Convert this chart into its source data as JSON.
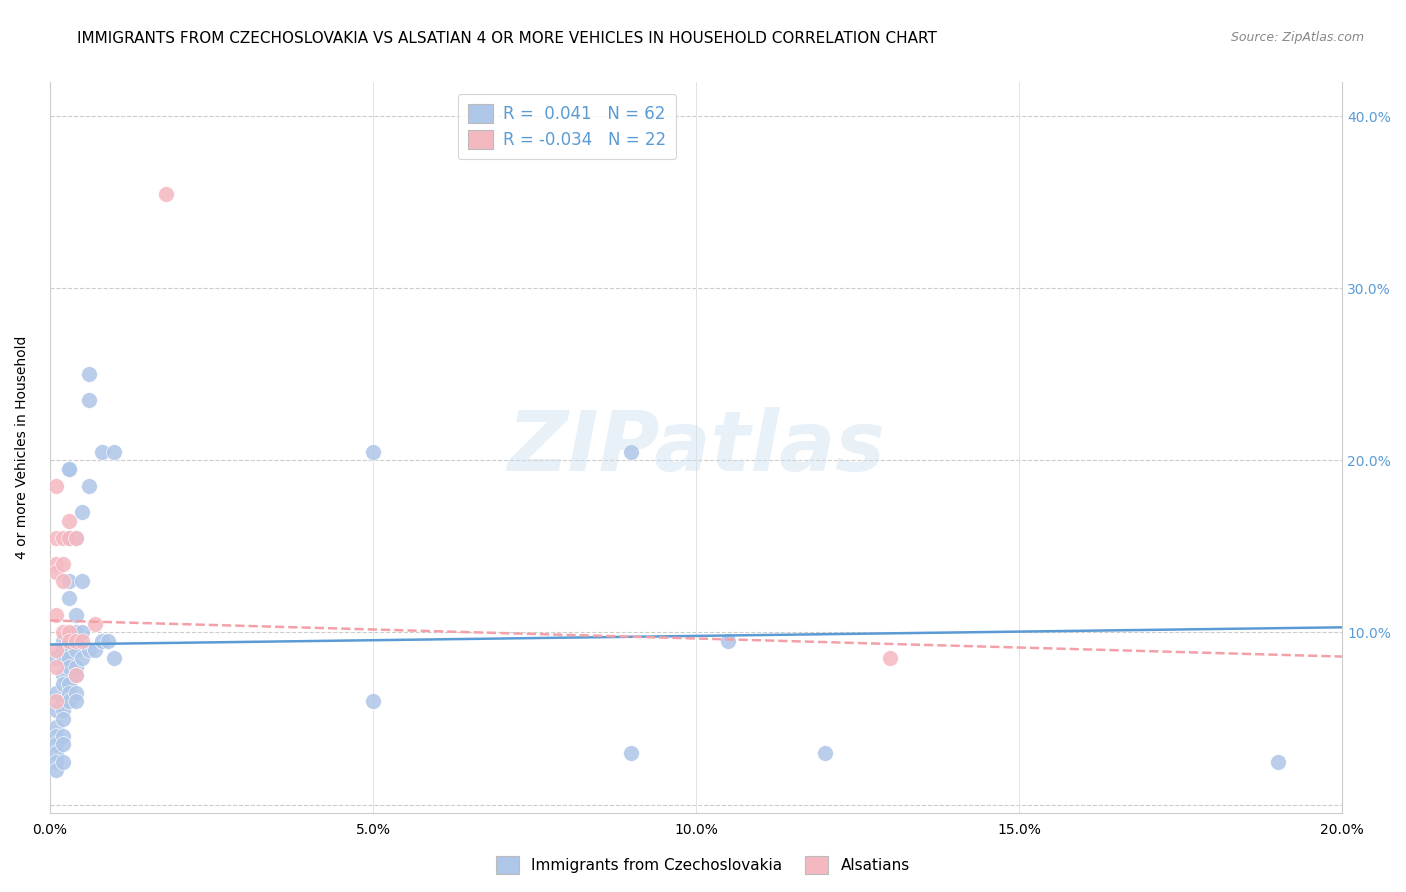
{
  "title": "IMMIGRANTS FROM CZECHOSLOVAKIA VS ALSATIAN 4 OR MORE VEHICLES IN HOUSEHOLD CORRELATION CHART",
  "source": "Source: ZipAtlas.com",
  "ylabel": "4 or more Vehicles in Household",
  "xlim": [
    0.0,
    0.2
  ],
  "ylim": [
    -0.005,
    0.42
  ],
  "watermark": "ZIPatlas",
  "scatter_blue": [
    [
      0.001,
      0.085
    ],
    [
      0.001,
      0.065
    ],
    [
      0.001,
      0.055
    ],
    [
      0.001,
      0.045
    ],
    [
      0.001,
      0.04
    ],
    [
      0.001,
      0.035
    ],
    [
      0.001,
      0.03
    ],
    [
      0.001,
      0.025
    ],
    [
      0.001,
      0.02
    ],
    [
      0.002,
      0.095
    ],
    [
      0.002,
      0.09
    ],
    [
      0.002,
      0.085
    ],
    [
      0.002,
      0.075
    ],
    [
      0.002,
      0.07
    ],
    [
      0.002,
      0.06
    ],
    [
      0.002,
      0.055
    ],
    [
      0.002,
      0.05
    ],
    [
      0.002,
      0.04
    ],
    [
      0.002,
      0.035
    ],
    [
      0.002,
      0.025
    ],
    [
      0.003,
      0.195
    ],
    [
      0.003,
      0.195
    ],
    [
      0.003,
      0.155
    ],
    [
      0.003,
      0.13
    ],
    [
      0.003,
      0.12
    ],
    [
      0.003,
      0.095
    ],
    [
      0.003,
      0.09
    ],
    [
      0.003,
      0.085
    ],
    [
      0.003,
      0.08
    ],
    [
      0.003,
      0.07
    ],
    [
      0.003,
      0.065
    ],
    [
      0.003,
      0.06
    ],
    [
      0.004,
      0.155
    ],
    [
      0.004,
      0.11
    ],
    [
      0.004,
      0.1
    ],
    [
      0.004,
      0.095
    ],
    [
      0.004,
      0.09
    ],
    [
      0.004,
      0.08
    ],
    [
      0.004,
      0.075
    ],
    [
      0.004,
      0.065
    ],
    [
      0.004,
      0.06
    ],
    [
      0.005,
      0.17
    ],
    [
      0.005,
      0.13
    ],
    [
      0.005,
      0.1
    ],
    [
      0.005,
      0.085
    ],
    [
      0.006,
      0.25
    ],
    [
      0.006,
      0.235
    ],
    [
      0.006,
      0.185
    ],
    [
      0.006,
      0.09
    ],
    [
      0.007,
      0.09
    ],
    [
      0.008,
      0.205
    ],
    [
      0.008,
      0.095
    ],
    [
      0.009,
      0.095
    ],
    [
      0.01,
      0.205
    ],
    [
      0.01,
      0.085
    ],
    [
      0.05,
      0.205
    ],
    [
      0.05,
      0.06
    ],
    [
      0.09,
      0.205
    ],
    [
      0.09,
      0.03
    ],
    [
      0.105,
      0.095
    ],
    [
      0.12,
      0.03
    ],
    [
      0.19,
      0.025
    ]
  ],
  "scatter_pink": [
    [
      0.001,
      0.185
    ],
    [
      0.001,
      0.155
    ],
    [
      0.001,
      0.14
    ],
    [
      0.001,
      0.135
    ],
    [
      0.001,
      0.11
    ],
    [
      0.001,
      0.09
    ],
    [
      0.001,
      0.08
    ],
    [
      0.001,
      0.06
    ],
    [
      0.002,
      0.155
    ],
    [
      0.002,
      0.14
    ],
    [
      0.002,
      0.13
    ],
    [
      0.002,
      0.1
    ],
    [
      0.003,
      0.165
    ],
    [
      0.003,
      0.155
    ],
    [
      0.003,
      0.1
    ],
    [
      0.003,
      0.095
    ],
    [
      0.004,
      0.155
    ],
    [
      0.004,
      0.095
    ],
    [
      0.004,
      0.075
    ],
    [
      0.005,
      0.095
    ],
    [
      0.007,
      0.105
    ],
    [
      0.13,
      0.085
    ]
  ],
  "pink_outlier": [
    0.018,
    0.355
  ],
  "blue_line_x": [
    0.0,
    0.2
  ],
  "blue_line_y": [
    0.093,
    0.103
  ],
  "pink_line_x": [
    0.0,
    0.2
  ],
  "pink_line_y": [
    0.107,
    0.086
  ],
  "blue_color": "#aec6e8",
  "pink_color": "#f4b8c1",
  "blue_line_color": "#5b9bd5",
  "pink_line_color": "#f4a0a8",
  "dot_size": 130,
  "title_fontsize": 11,
  "axis_label_fontsize": 10,
  "tick_fontsize": 10,
  "right_tick_color": "#5b9bd5",
  "legend_r1": "R =  0.041   N = 62",
  "legend_r2": "R = -0.034   N = 22",
  "legend_label1": "Immigrants from Czechoslovakia",
  "legend_label2": "Alsatians"
}
